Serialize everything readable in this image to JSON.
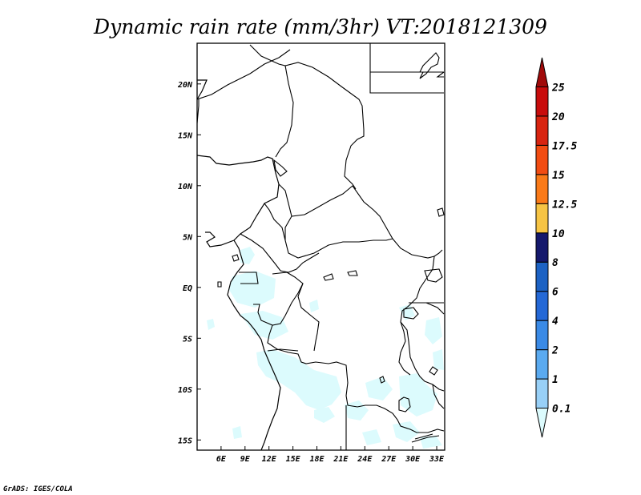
{
  "title": "Dynamic rain rate (mm/3hr) VT:2018121309",
  "credit": "GrADS: IGES/COLA",
  "map": {
    "lon_range": [
      3,
      34
    ],
    "lat_range": [
      -16,
      24
    ],
    "x_ticks": [
      {
        "value": 6,
        "label": "6E"
      },
      {
        "value": 9,
        "label": "9E"
      },
      {
        "value": 12,
        "label": "12E"
      },
      {
        "value": 15,
        "label": "15E"
      },
      {
        "value": 18,
        "label": "18E"
      },
      {
        "value": 21,
        "label": "21E"
      },
      {
        "value": 24,
        "label": "24E"
      },
      {
        "value": 27,
        "label": "27E"
      },
      {
        "value": 30,
        "label": "30E"
      },
      {
        "value": 33,
        "label": "33E"
      }
    ],
    "y_ticks": [
      {
        "value": 20,
        "label": "20N"
      },
      {
        "value": 15,
        "label": "15N"
      },
      {
        "value": 10,
        "label": "10N"
      },
      {
        "value": 5,
        "label": "5N"
      },
      {
        "value": 0,
        "label": "EQ"
      },
      {
        "value": -5,
        "label": "5S"
      },
      {
        "value": -10,
        "label": "10S"
      },
      {
        "value": -15,
        "label": "15S"
      }
    ],
    "field_color": "#dcfbfd",
    "field_level": "0.1-1 mm/3hr"
  },
  "colorbar": {
    "levels": [
      "0.1",
      "1",
      "2",
      "4",
      "6",
      "8",
      "10",
      "12.5",
      "15",
      "17.5",
      "20",
      "25"
    ],
    "colors": [
      "#dcfbfd",
      "#98d0f7",
      "#5aaaf0",
      "#3a8ae6",
      "#2468d6",
      "#1c62c4",
      "#14186c",
      "#f6c444",
      "#fa7a18",
      "#f24c12",
      "#d82410",
      "#c80c0c",
      "#a00a0a"
    ]
  }
}
